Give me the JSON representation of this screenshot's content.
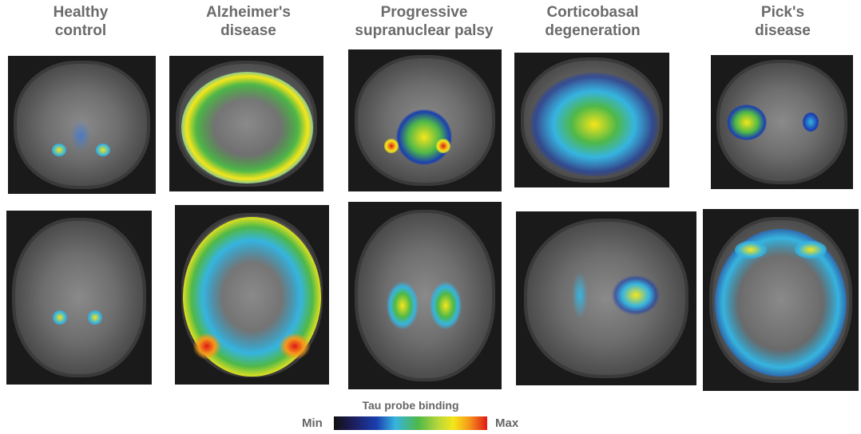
{
  "columns": [
    {
      "title_line1": "Healthy",
      "title_line2": "control"
    },
    {
      "title_line1": "Alzheimer's",
      "title_line2": "disease"
    },
    {
      "title_line1": "Progressive",
      "title_line2": "supranuclear palsy"
    },
    {
      "title_line1": "Corticobasal",
      "title_line2": "degeneration"
    },
    {
      "title_line1": "Pick's",
      "title_line2": "disease"
    }
  ],
  "colorbar": {
    "title": "Tau probe binding",
    "min_label": "Min",
    "max_label": "Max",
    "colors": [
      "#111111",
      "#1a3fb0",
      "#36b4e0",
      "#4fb848",
      "#f5e61a",
      "#f59a1a",
      "#e01818"
    ]
  }
}
